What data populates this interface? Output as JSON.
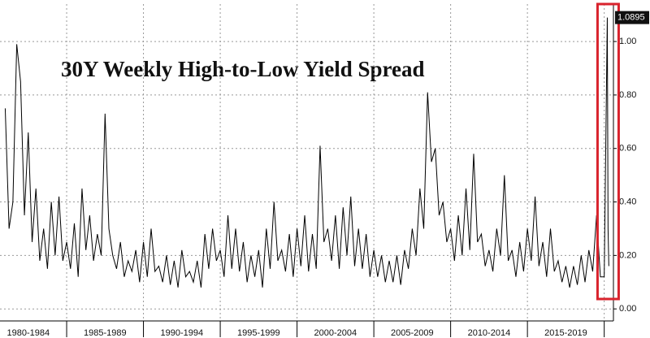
{
  "chart_data": {
    "type": "line",
    "title": "30Y Weekly High-to-Low Yield Spread",
    "categories": [
      "1980-1984",
      "1985-1989",
      "1990-1994",
      "1995-1999",
      "2000-2004",
      "2005-2009",
      "2010-2014",
      "2015-2019"
    ],
    "xlim": [
      1980.66,
      2020.6
    ],
    "xticks": [
      1985,
      1990,
      1995,
      2000,
      2005,
      2010,
      2015,
      2020
    ],
    "ylim": [
      -0.045,
      1.14
    ],
    "yticks": [
      {
        "value": 0,
        "label": "0.00"
      },
      {
        "value": 0.2,
        "label": "0.20"
      },
      {
        "value": 0.4,
        "label": "0.40"
      },
      {
        "value": 0.6,
        "label": "0.60"
      },
      {
        "value": 0.8,
        "label": "0.80"
      },
      {
        "value": 1,
        "label": "1.00"
      }
    ],
    "grid": true,
    "color": "#000000",
    "x": [
      1981,
      1981.25,
      1981.5,
      1981.75,
      1982,
      1982.25,
      1982.5,
      1982.75,
      1983,
      1983.25,
      1983.5,
      1983.75,
      1984,
      1984.25,
      1984.5,
      1984.75,
      1985,
      1985.25,
      1985.5,
      1985.75,
      1986,
      1986.25,
      1986.5,
      1986.75,
      1987,
      1987.25,
      1987.5,
      1987.75,
      1988,
      1988.25,
      1988.5,
      1988.75,
      1989,
      1989.25,
      1989.5,
      1989.75,
      1990,
      1990.25,
      1990.5,
      1990.75,
      1991,
      1991.25,
      1991.5,
      1991.75,
      1992,
      1992.25,
      1992.5,
      1992.75,
      1993,
      1993.25,
      1993.5,
      1993.75,
      1994,
      1994.25,
      1994.5,
      1994.75,
      1995,
      1995.25,
      1995.5,
      1995.75,
      1996,
      1996.25,
      1996.5,
      1996.75,
      1997,
      1997.25,
      1997.5,
      1997.75,
      1998,
      1998.25,
      1998.5,
      1998.75,
      1999,
      1999.25,
      1999.5,
      1999.75,
      2000,
      2000.25,
      2000.5,
      2000.75,
      2001,
      2001.25,
      2001.5,
      2001.75,
      2002,
      2002.25,
      2002.5,
      2002.75,
      2003,
      2003.25,
      2003.5,
      2003.75,
      2004,
      2004.25,
      2004.5,
      2004.75,
      2005,
      2005.25,
      2005.5,
      2005.75,
      2006,
      2006.25,
      2006.5,
      2006.75,
      2007,
      2007.25,
      2007.5,
      2007.75,
      2008,
      2008.25,
      2008.5,
      2008.75,
      2009,
      2009.25,
      2009.5,
      2009.75,
      2010,
      2010.25,
      2010.5,
      2010.75,
      2011,
      2011.25,
      2011.5,
      2011.75,
      2012,
      2012.25,
      2012.5,
      2012.75,
      2013,
      2013.25,
      2013.5,
      2013.75,
      2014,
      2014.25,
      2014.5,
      2014.75,
      2015,
      2015.25,
      2015.5,
      2015.75,
      2016,
      2016.25,
      2016.5,
      2016.75,
      2017,
      2017.25,
      2017.5,
      2017.75,
      2018,
      2018.25,
      2018.5,
      2018.75,
      2019,
      2019.25,
      2019.5,
      2019.75,
      2020,
      2020.2,
      2020.25,
      2020.3
    ],
    "values": [
      0.75,
      0.3,
      0.4,
      0.99,
      0.85,
      0.35,
      0.66,
      0.25,
      0.45,
      0.18,
      0.3,
      0.15,
      0.4,
      0.2,
      0.42,
      0.18,
      0.25,
      0.15,
      0.32,
      0.12,
      0.45,
      0.22,
      0.35,
      0.18,
      0.28,
      0.2,
      0.73,
      0.3,
      0.2,
      0.15,
      0.25,
      0.12,
      0.18,
      0.14,
      0.22,
      0.1,
      0.25,
      0.12,
      0.3,
      0.14,
      0.16,
      0.1,
      0.2,
      0.09,
      0.18,
      0.08,
      0.22,
      0.12,
      0.14,
      0.1,
      0.18,
      0.08,
      0.28,
      0.15,
      0.3,
      0.18,
      0.22,
      0.12,
      0.35,
      0.15,
      0.3,
      0.14,
      0.25,
      0.1,
      0.2,
      0.12,
      0.22,
      0.08,
      0.3,
      0.15,
      0.4,
      0.18,
      0.22,
      0.14,
      0.28,
      0.12,
      0.3,
      0.16,
      0.35,
      0.14,
      0.28,
      0.15,
      0.61,
      0.25,
      0.3,
      0.18,
      0.35,
      0.15,
      0.38,
      0.2,
      0.42,
      0.16,
      0.3,
      0.15,
      0.28,
      0.12,
      0.22,
      0.12,
      0.2,
      0.1,
      0.18,
      0.1,
      0.2,
      0.09,
      0.22,
      0.15,
      0.3,
      0.2,
      0.45,
      0.3,
      0.81,
      0.55,
      0.6,
      0.35,
      0.4,
      0.25,
      0.3,
      0.18,
      0.35,
      0.2,
      0.45,
      0.22,
      0.58,
      0.25,
      0.28,
      0.16,
      0.22,
      0.14,
      0.3,
      0.2,
      0.5,
      0.18,
      0.22,
      0.12,
      0.25,
      0.14,
      0.3,
      0.18,
      0.42,
      0.16,
      0.25,
      0.12,
      0.3,
      0.14,
      0.18,
      0.1,
      0.16,
      0.08,
      0.16,
      0.09,
      0.2,
      0.1,
      0.22,
      0.14,
      0.35,
      0.12,
      0.12,
      1.0895,
      0.3,
      0.16
    ],
    "value_labels": [
      null,
      null,
      null,
      null,
      null,
      null,
      null,
      null,
      null,
      null,
      null,
      null,
      null,
      null,
      null,
      null,
      null,
      null,
      null,
      null,
      null,
      null,
      null,
      null,
      null,
      null,
      null,
      null,
      null,
      null,
      null,
      null,
      null,
      null,
      null,
      null,
      null,
      null,
      null,
      null,
      null,
      null,
      null,
      null,
      null,
      null,
      null,
      null,
      null,
      null,
      null,
      null,
      null,
      null,
      null,
      null,
      null,
      null,
      null,
      null,
      null,
      null,
      null,
      null,
      null,
      null,
      null,
      null,
      null,
      null,
      null,
      null,
      null,
      null,
      null,
      null,
      null,
      null,
      null,
      null,
      null,
      null,
      null,
      null,
      null,
      null,
      null,
      null,
      null,
      null,
      null,
      null,
      null,
      null,
      null,
      null,
      null,
      null,
      null,
      null,
      null,
      null,
      null,
      null,
      null,
      null,
      null,
      null,
      null,
      null,
      null,
      null,
      null,
      null,
      null,
      null,
      null,
      null,
      null,
      null,
      null,
      null,
      null,
      null,
      null,
      null,
      null,
      null,
      null,
      null,
      null,
      null,
      null,
      null,
      null,
      null,
      null,
      null,
      null,
      null,
      null,
      null,
      null,
      null,
      null,
      null,
      null,
      null,
      null,
      null,
      null,
      null,
      null,
      null,
      null,
      null,
      null,
      "1.0895",
      null,
      null
    ]
  }
}
